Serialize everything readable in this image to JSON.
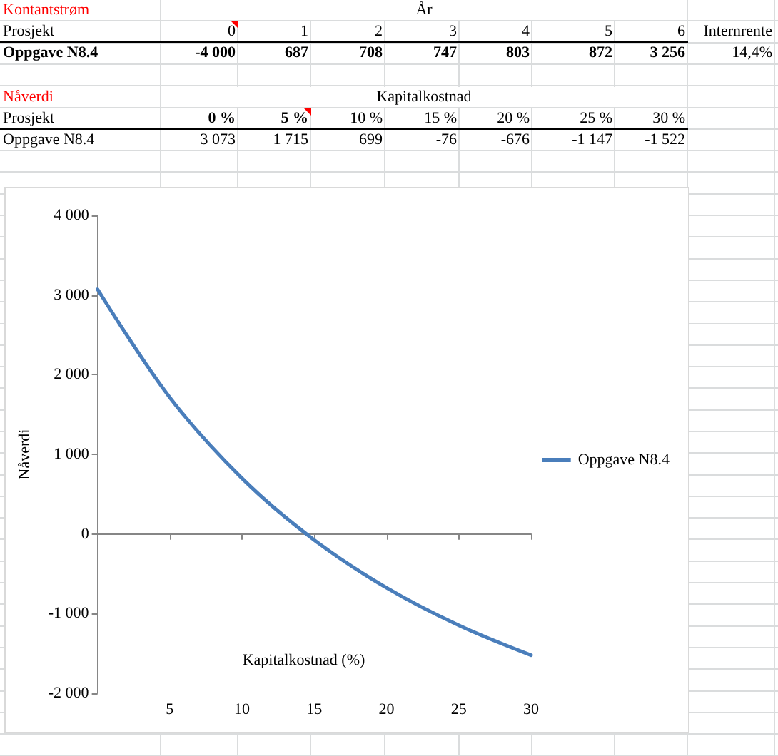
{
  "chart_data": {
    "type": "line",
    "x": [
      0,
      5,
      10,
      15,
      20,
      25,
      30
    ],
    "series": [
      {
        "name": "Oppgave N8.4",
        "color": "#4a7ebb",
        "values": [
          3073,
          1715,
          699,
          -76,
          -676,
          -1147,
          -1522
        ]
      }
    ],
    "ylabel": "Nåverdi",
    "annotations": [
      "Kontantstrøm",
      "År",
      "Prosjekt",
      "0",
      "1",
      "2",
      "3",
      "4",
      "5",
      "6",
      "Internrente",
      "Oppgave N8.4",
      "-4 000",
      "687",
      "708",
      "747",
      "803",
      "872",
      "3 256",
      "14,4%",
      "Nåverdi",
      "Kapitalkostnad",
      "Prosjekt",
      "0 %",
      "5 %",
      "10 %",
      "15 %",
      "20 %",
      "25 %",
      "30 %",
      "Oppgave N8.4",
      "3 073",
      "1 715",
      "699",
      "-76",
      "-676",
      "-1 147",
      "-1 522",
      "Kapitalkostnad (%)"
    ],
    "xlim": [
      0,
      30
    ],
    "xticks": [
      5,
      10,
      15,
      20,
      25,
      30
    ],
    "ylim": [
      -2000,
      4000
    ],
    "yticks": [
      {
        "value": -2000,
        "label": "-2 000"
      },
      {
        "value": -1000,
        "label": "-1 000"
      },
      0,
      {
        "value": 1000,
        "label": "1 000"
      },
      {
        "value": 2000,
        "label": "2 000"
      },
      {
        "value": 3000,
        "label": "3 000"
      },
      {
        "value": 4000,
        "label": "4 000"
      }
    ],
    "legend": "right",
    "marker": "none",
    "line_style": "solid"
  }
}
